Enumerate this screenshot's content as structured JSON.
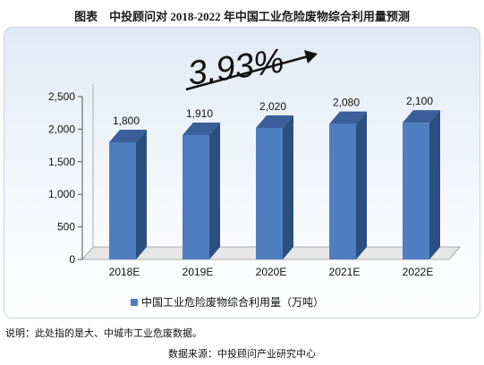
{
  "title": "图表　中投顾问对 2018-2022 年中国工业危险废物综合利用量预测",
  "chart_data": {
    "type": "bar",
    "categories": [
      "2018E",
      "2019E",
      "2020E",
      "2021E",
      "2022E"
    ],
    "series": [
      {
        "name": "中国工业危险废物综合利用量（万吨）",
        "values": [
          1800,
          1910,
          2020,
          2080,
          2100
        ],
        "color": "#4f7fc1"
      }
    ],
    "data_labels": [
      "1,800",
      "1,910",
      "2,020",
      "2,080",
      "2,100"
    ],
    "ylim": [
      0,
      2500
    ],
    "yticks": [
      0,
      500,
      1000,
      1500,
      2000,
      2500
    ],
    "ytick_labels": [
      "0",
      "500",
      "1,000",
      "1,500",
      "2,000",
      "2,500"
    ],
    "annotation": "3.93%",
    "legend_position": "bottom-center",
    "grid": false,
    "style": "3d-bar"
  },
  "footnote": "说明：此处指的是大、中城市工业危废数据。",
  "source": "数据来源：中投顾问产业研究中心"
}
